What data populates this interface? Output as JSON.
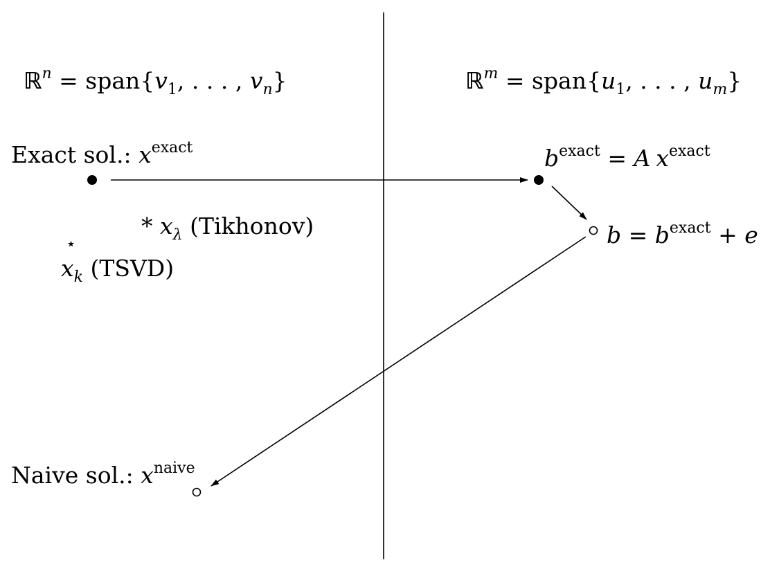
{
  "left_space": {
    "lhs_symbol": "ℝ",
    "lhs_exp": "n",
    "eq": " = span{",
    "vec1": "v",
    "vec1_sub": "1",
    "sep": ", . . . , ",
    "vec2": "v",
    "vec2_sub": "n",
    "close": "}"
  },
  "right_space": {
    "lhs_symbol": "ℝ",
    "lhs_exp": "m",
    "eq": " = span{",
    "vec1": "u",
    "vec1_sub": "1",
    "sep": ", . . . , ",
    "vec2": "u",
    "vec2_sub": "m",
    "close": "}"
  },
  "exact_solution": {
    "prefix": "Exact sol.: ",
    "var": "x",
    "sup": "exact"
  },
  "exact_rhs": {
    "var": "b",
    "sup": "exact",
    "eq": " = ",
    "op": "A",
    "var2": "x",
    "sup2": "exact"
  },
  "noisy_rhs": {
    "var": "b",
    "eq": " = ",
    "var2": "b",
    "sup2": "exact",
    "plus": " + ",
    "noise": "e"
  },
  "tikhonov": {
    "marker": "*",
    "var": "x",
    "sub": "λ",
    "name": "(Tikhonov)"
  },
  "tsvd": {
    "marker": "⋆",
    "var": "x",
    "sub": "k",
    "name": "(TSVD)"
  },
  "naive_solution": {
    "prefix": "Naive sol.: ",
    "var": "x",
    "sup": "naive"
  }
}
